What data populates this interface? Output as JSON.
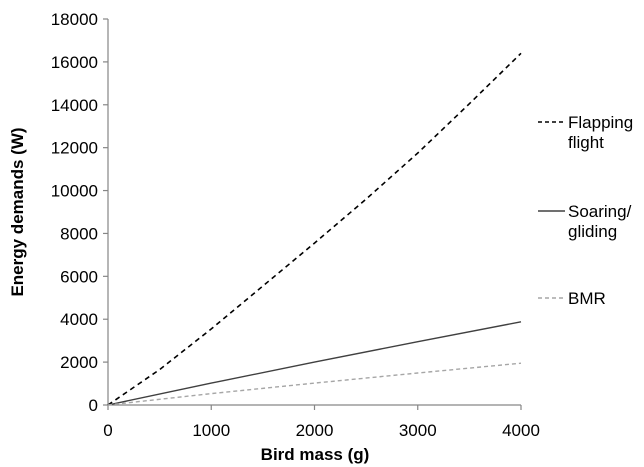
{
  "chart_data": {
    "type": "line",
    "title": "",
    "xlabel": "Bird mass (g)",
    "ylabel": "Energy demands (W)",
    "xlim": [
      0,
      4000
    ],
    "ylim": [
      0,
      18000
    ],
    "xticks": [
      "0",
      "1000",
      "2000",
      "3000",
      "4000"
    ],
    "yticks": [
      "0",
      "2000",
      "4000",
      "6000",
      "8000",
      "10000",
      "12000",
      "14000",
      "16000",
      "18000"
    ],
    "grid": false,
    "legend_position": "right",
    "series": [
      {
        "name": "Flapping flight",
        "legend_lines": [
          "Flapping",
          "flight"
        ],
        "style": "dashed",
        "color": "#000000",
        "x": [
          0,
          500,
          1000,
          1500,
          2000,
          2500,
          3000,
          3500,
          4000
        ],
        "y": [
          0,
          1650,
          3550,
          5550,
          7550,
          9600,
          11750,
          14050,
          16400
        ]
      },
      {
        "name": "Soaring/ gliding",
        "legend_lines": [
          "Soaring/",
          "gliding"
        ],
        "style": "solid",
        "color": "#404040",
        "x": [
          0,
          1000,
          2000,
          3000,
          4000
        ],
        "y": [
          0,
          1020,
          2000,
          2950,
          3880
        ]
      },
      {
        "name": "BMR",
        "legend_lines": [
          "BMR"
        ],
        "style": "dashed",
        "color": "#a6a6a6",
        "x": [
          0,
          1000,
          2000,
          3000,
          4000
        ],
        "y": [
          0,
          530,
          1020,
          1490,
          1950
        ]
      }
    ]
  }
}
